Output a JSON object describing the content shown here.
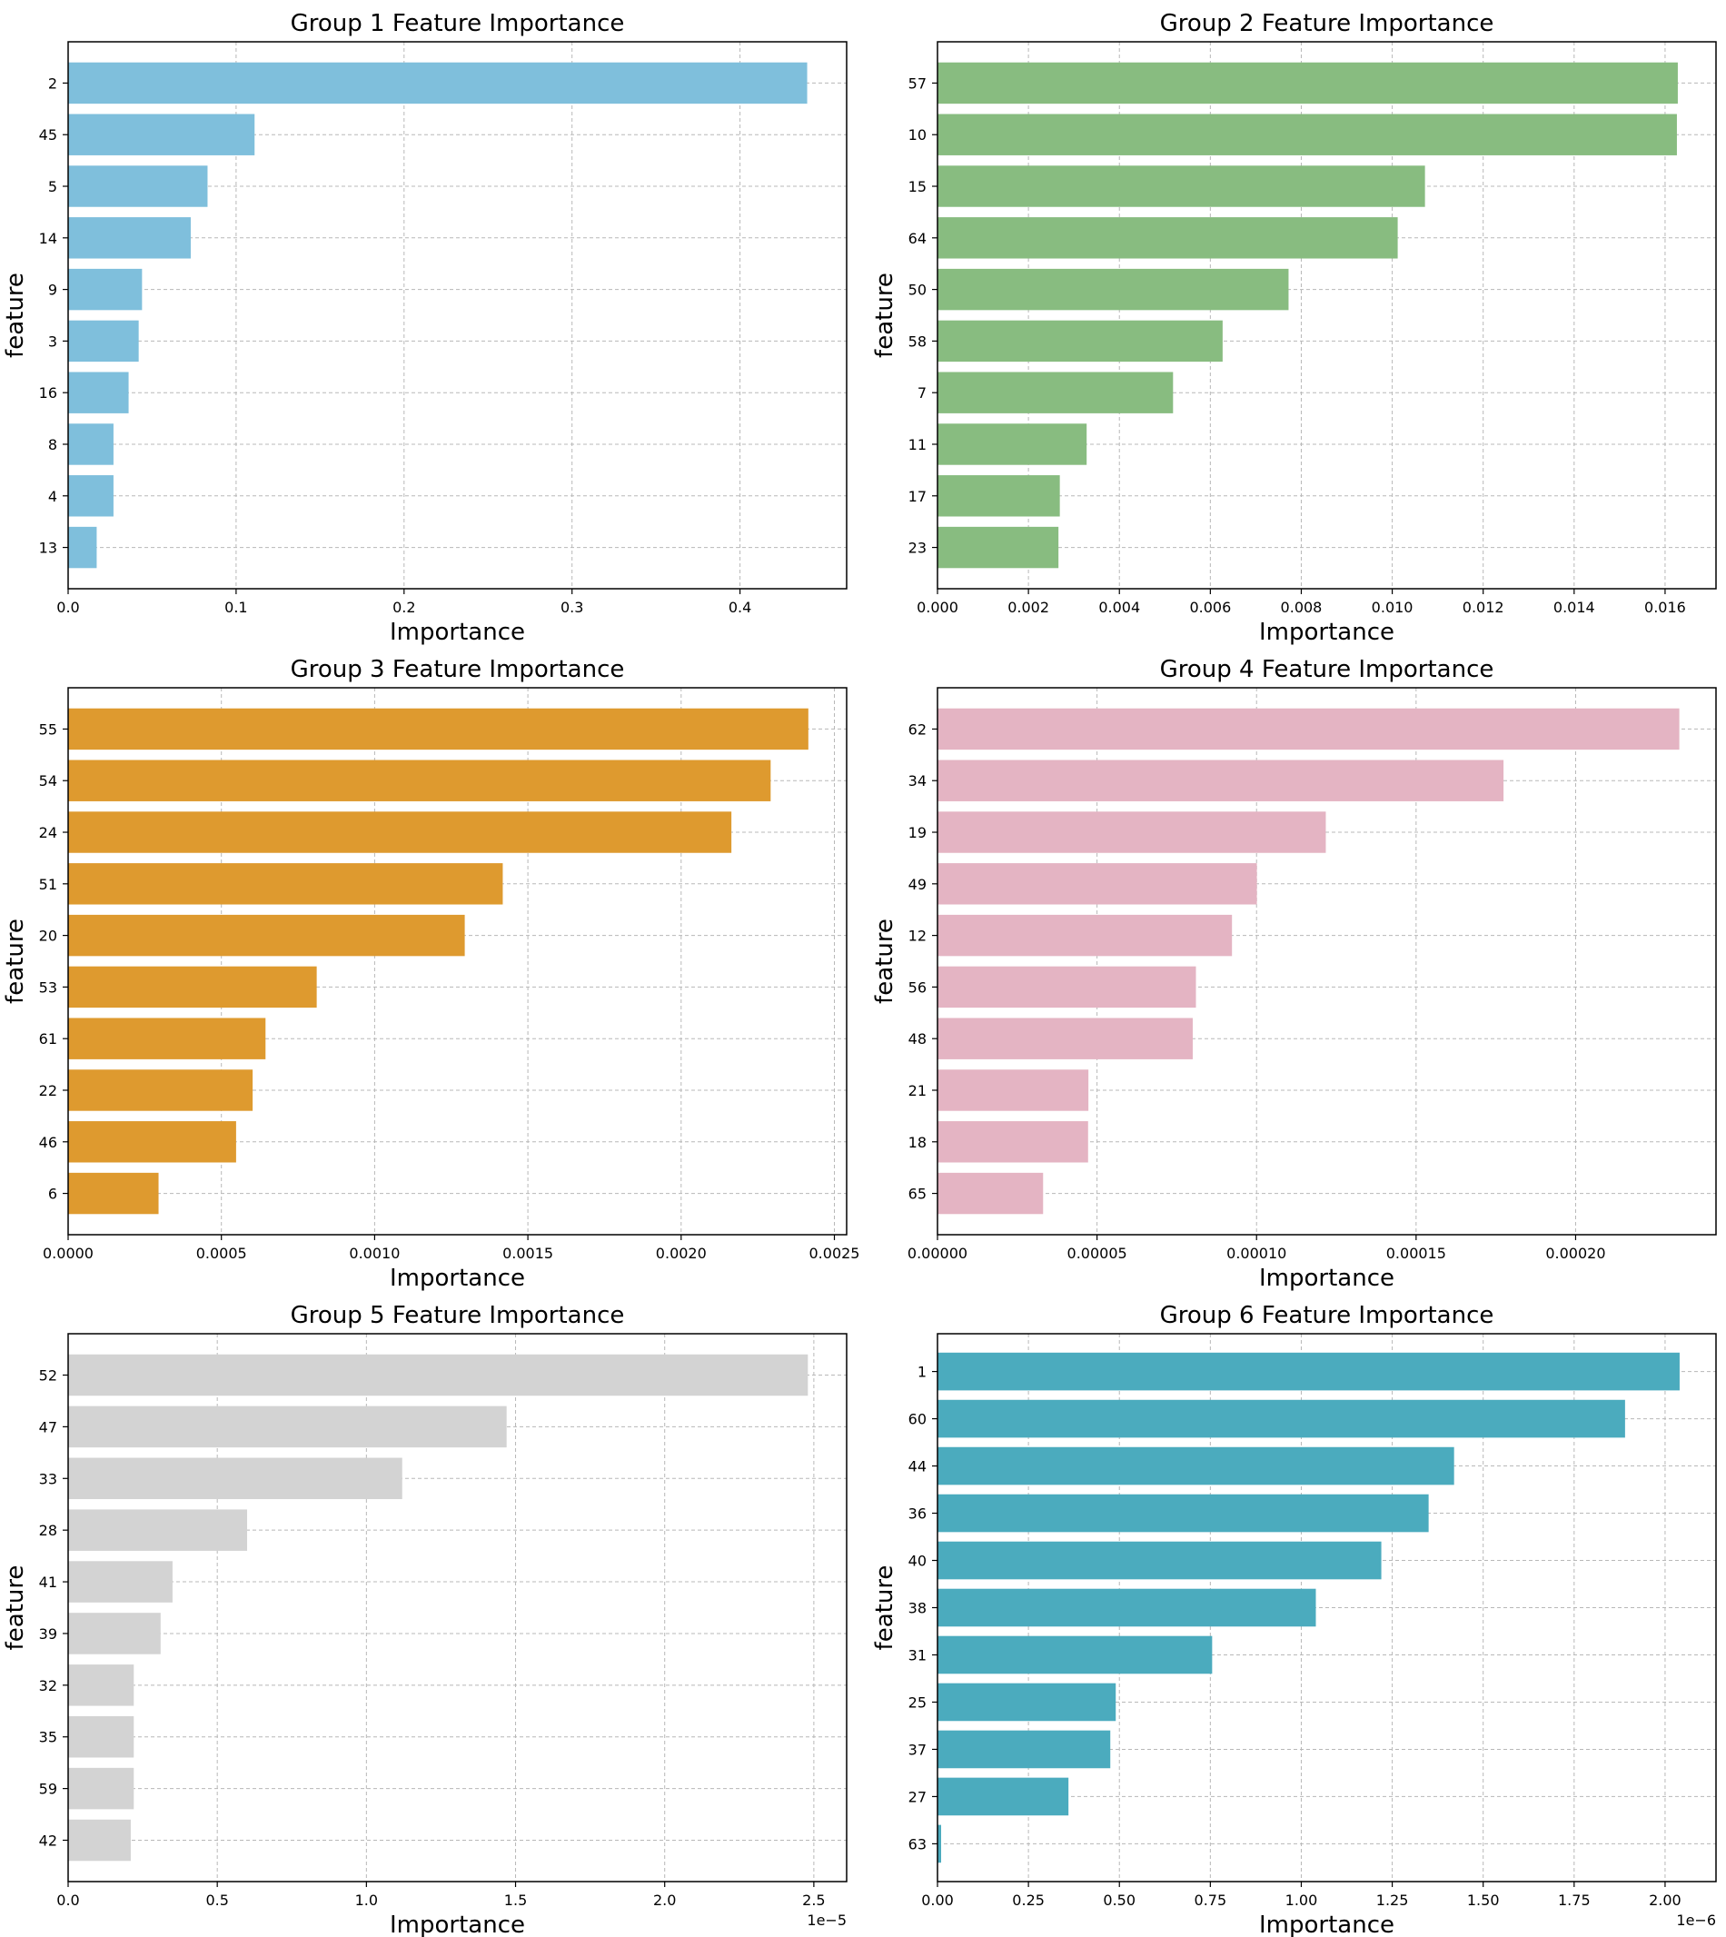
{
  "chart_data": [
    {
      "type": "bar",
      "orientation": "horizontal",
      "title": "Group 1 Feature Importance",
      "xlabel": "Importance",
      "ylabel": "feature",
      "color": "#7fbfdc",
      "categories": [
        "2",
        "45",
        "5",
        "14",
        "9",
        "3",
        "16",
        "8",
        "4",
        "13"
      ],
      "values": [
        0.44,
        0.111,
        0.083,
        0.073,
        0.044,
        0.042,
        0.036,
        0.027,
        0.027,
        0.017
      ],
      "xlim": [
        0,
        0.4635
      ],
      "xticks": [
        0.0,
        0.1,
        0.2,
        0.3,
        0.4
      ],
      "xtick_labels": [
        "0.0",
        "0.1",
        "0.2",
        "0.3",
        "0.4"
      ],
      "offset_text": "",
      "grid": true
    },
    {
      "type": "bar",
      "orientation": "horizontal",
      "title": "Group 2 Feature Importance",
      "xlabel": "Importance",
      "ylabel": "feature",
      "color": "#88bc80",
      "categories": [
        "57",
        "10",
        "15",
        "64",
        "50",
        "58",
        "7",
        "11",
        "17",
        "23"
      ],
      "values": [
        0.01628,
        0.01626,
        0.01072,
        0.01012,
        0.00772,
        0.00627,
        0.00518,
        0.00328,
        0.00269,
        0.00266
      ],
      "xlim": [
        0,
        0.01712
      ],
      "xticks": [
        0.0,
        0.002,
        0.004,
        0.006,
        0.008,
        0.01,
        0.012,
        0.014,
        0.016
      ],
      "xtick_labels": [
        "0.000",
        "0.002",
        "0.004",
        "0.006",
        "0.008",
        "0.010",
        "0.012",
        "0.014",
        "0.016"
      ],
      "offset_text": "",
      "grid": true
    },
    {
      "type": "bar",
      "orientation": "horizontal",
      "title": "Group 3 Feature Importance",
      "xlabel": "Importance",
      "ylabel": "feature",
      "color": "#de9a2f",
      "categories": [
        "55",
        "54",
        "24",
        "51",
        "20",
        "53",
        "61",
        "22",
        "46",
        "6"
      ],
      "values": [
        0.002415,
        0.002292,
        0.002164,
        0.001418,
        0.001294,
        0.000811,
        0.000644,
        0.000602,
        0.000548,
        0.000295
      ],
      "xlim": [
        0,
        0.00254
      ],
      "xticks": [
        0.0,
        0.0005,
        0.001,
        0.0015,
        0.002,
        0.0025
      ],
      "xtick_labels": [
        "0.0000",
        "0.0005",
        "0.0010",
        "0.0015",
        "0.0020",
        "0.0025"
      ],
      "offset_text": "",
      "grid": true
    },
    {
      "type": "bar",
      "orientation": "horizontal",
      "title": "Group 4 Feature Importance",
      "xlabel": "Importance",
      "ylabel": "feature",
      "color": "#e4b4c3",
      "categories": [
        "62",
        "34",
        "19",
        "49",
        "12",
        "56",
        "48",
        "21",
        "18",
        "65"
      ],
      "values": [
        0.0002325,
        0.0001774,
        0.0001217,
        0.0001001,
        9.23e-05,
        8.1e-05,
        8e-05,
        4.73e-05,
        4.72e-05,
        3.31e-05
      ],
      "xlim": [
        0,
        0.000244
      ],
      "xticks": [
        0.0,
        5e-05,
        0.0001,
        0.00015,
        0.0002
      ],
      "xtick_labels": [
        "0.00000",
        "0.00005",
        "0.00010",
        "0.00015",
        "0.00020"
      ],
      "offset_text": "",
      "grid": true
    },
    {
      "type": "bar",
      "orientation": "horizontal",
      "title": "Group 5 Feature Importance",
      "xlabel": "Importance",
      "ylabel": "feature",
      "color": "#d3d3d3",
      "categories": [
        "52",
        "47",
        "33",
        "28",
        "41",
        "39",
        "32",
        "35",
        "59",
        "42"
      ],
      "values": [
        2.48,
        1.47,
        1.12,
        0.6,
        0.35,
        0.31,
        0.22,
        0.22,
        0.22,
        0.21
      ],
      "xlim": [
        0,
        2.61
      ],
      "xticks": [
        0.0,
        0.5,
        1.0,
        1.5,
        2.0,
        2.5
      ],
      "xtick_labels": [
        "0.0",
        "0.5",
        "1.0",
        "1.5",
        "2.0",
        "2.5"
      ],
      "offset_text": "1e−5",
      "grid": true
    },
    {
      "type": "bar",
      "orientation": "horizontal",
      "title": "Group 6 Feature Importance",
      "xlabel": "Importance",
      "ylabel": "feature",
      "color": "#4babbe",
      "categories": [
        "1",
        "60",
        "44",
        "36",
        "40",
        "38",
        "31",
        "25",
        "37",
        "27",
        "63"
      ],
      "values": [
        2.04,
        1.89,
        1.42,
        1.35,
        1.22,
        1.04,
        0.755,
        0.49,
        0.475,
        0.36,
        0.01
      ],
      "xlim": [
        0,
        2.14
      ],
      "xticks": [
        0.0,
        0.25,
        0.5,
        0.75,
        1.0,
        1.25,
        1.5,
        1.75,
        2.0
      ],
      "xtick_labels": [
        "0.00",
        "0.25",
        "0.50",
        "0.75",
        "1.00",
        "1.25",
        "1.50",
        "1.75",
        "2.00"
      ],
      "offset_text": "1e−6",
      "grid": true
    }
  ]
}
